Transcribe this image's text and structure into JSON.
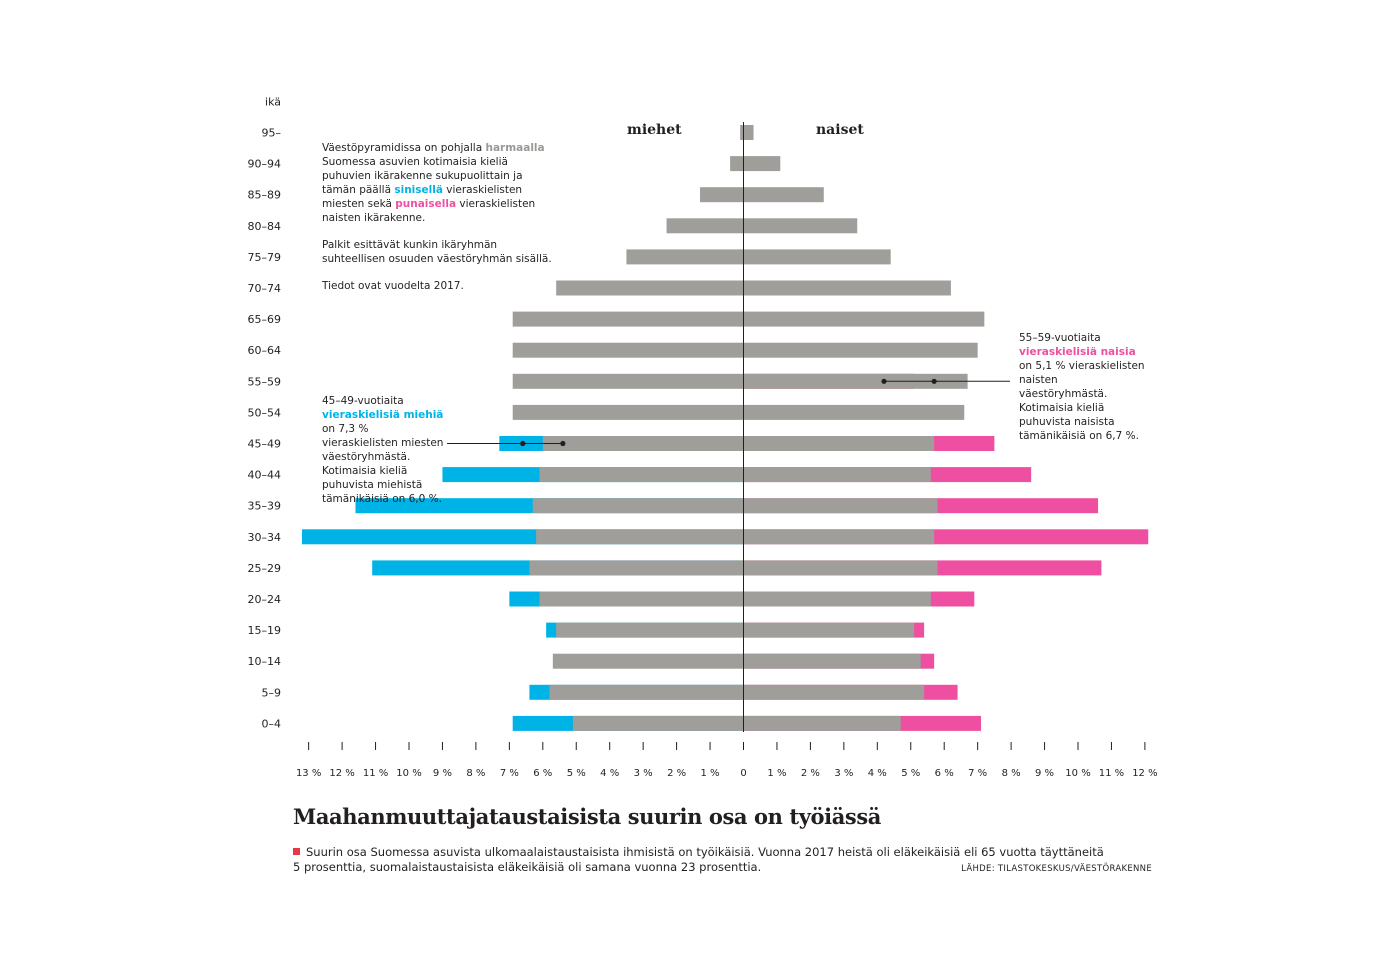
{
  "colors": {
    "native": "#a09e9a",
    "foreign_men": "#00b3e6",
    "foreign_women": "#ef4fa0",
    "axis": "#231f20",
    "bullet": "#e63946"
  },
  "intro": {
    "p1_a": "Väestöpyramidissa on pohjalla ",
    "p1_gray": "harmaalla",
    "p1_b": " Suomessa asuvien kotimaisia kieliä puhuvien ikärakenne sukupuolittain ja tämän päällä ",
    "p1_blue": "sinisellä",
    "p1_c": " vieraskielisten miesten sekä ",
    "p1_pink": "punaisella",
    "p1_d": " vieraskielisten naisten ikärakenne.",
    "p2": "Palkit esittävät kunkin ikäryhmän suhteellisen osuuden väestöryhmän sisällä.",
    "p3": "Tiedot ovat vuodelta 2017."
  },
  "labels": {
    "men": "miehet",
    "women": "naiset"
  },
  "annotation_men": {
    "a": "45–49-vuotiaita ",
    "colored": "vieraskielisiä miehiä",
    "b": " on 7,3 % vieraskielisten miesten väestöryhmästä. Kotimaisia kieliä puhuvista miehistä tämänikäisiä on 6,0 %."
  },
  "annotation_women": {
    "a": "55–59-vuotiaita ",
    "colored": "vieraskielisiä naisia",
    "b": " on 5,1 % vieraskielisten naisten väestöryhmästä. Kotimaisia kieliä puhuvista naisista tämänikäisiä on 6,7 %."
  },
  "headline": "Maahanmuuttajataustaisista suurin osa on työiässä",
  "caption": "Suurin osa Suomessa asuvista ulkomaalaistaustaisista ihmisistä on työikäisiä. Vuonna 2017 heistä oli eläkeikäisiä eli 65 vuotta täyttäneitä 5 prosenttia, suomalaistaustaisista eläkeikäisiä oli samana vuonna 23 prosenttia.",
  "source": "LÄHDE: TILASTOKESKUS/VÄESTÖRAKENNE",
  "chart_data": {
    "type": "bar",
    "orientation": "horizontal population pyramid",
    "ylabel": "ikä",
    "categories": [
      "95–",
      "90–94",
      "85–89",
      "80–84",
      "75–79",
      "70–74",
      "65–69",
      "60–64",
      "55–59",
      "50–54",
      "45–49",
      "40–44",
      "35–39",
      "30–34",
      "25–29",
      "20–24",
      "15–19",
      "10–14",
      "5–9",
      "0–4"
    ],
    "series": [
      {
        "name": "miehet, kotimaisia kieliä puhuvat",
        "values": [
          0.1,
          0.4,
          1.3,
          2.3,
          3.5,
          5.6,
          6.9,
          6.9,
          6.9,
          6.9,
          6.0,
          6.1,
          6.3,
          6.2,
          6.4,
          6.1,
          5.6,
          5.7,
          5.8,
          5.1
        ]
      },
      {
        "name": "miehet, vieraskieliset",
        "values": [
          0,
          0,
          0,
          0,
          0,
          0,
          0,
          0,
          0,
          0,
          7.3,
          9.0,
          11.6,
          13.2,
          11.1,
          7.0,
          5.9,
          0,
          6.4,
          6.9
        ]
      },
      {
        "name": "naiset, kotimaisia kieliä puhuvat",
        "values": [
          0.3,
          1.1,
          2.4,
          3.4,
          4.4,
          6.2,
          7.2,
          7.0,
          6.7,
          6.6,
          5.7,
          5.6,
          5.8,
          5.7,
          5.8,
          5.6,
          5.1,
          5.3,
          5.4,
          4.7
        ]
      },
      {
        "name": "naiset, vieraskieliset",
        "values": [
          0,
          0,
          0,
          0,
          0,
          0,
          0,
          0,
          5.1,
          0,
          7.5,
          8.6,
          10.6,
          12.1,
          10.7,
          6.9,
          5.4,
          5.7,
          6.4,
          7.1
        ]
      }
    ],
    "x_tick_labels_left": [
      "13 %",
      "12 %",
      "11 %",
      "10 %",
      "9 %",
      "8 %",
      "7 %",
      "6 %",
      "5 %",
      "4 %",
      "3 %",
      "2 %",
      "1 %"
    ],
    "x_tick_labels_right": [
      "0",
      "1 %",
      "2 %",
      "3 %",
      "4 %",
      "5 %",
      "6 %",
      "7 %",
      "8 %",
      "9 %",
      "10 %",
      "11 %",
      "12 %"
    ],
    "xlim_men": [
      0,
      13
    ],
    "xlim_women": [
      0,
      12
    ],
    "markers": [
      {
        "category": "45–49",
        "side": "men",
        "foreign": 6.6,
        "native": 5.4
      },
      {
        "category": "55–59",
        "side": "women",
        "foreign": 4.2,
        "native": 5.7
      }
    ]
  }
}
